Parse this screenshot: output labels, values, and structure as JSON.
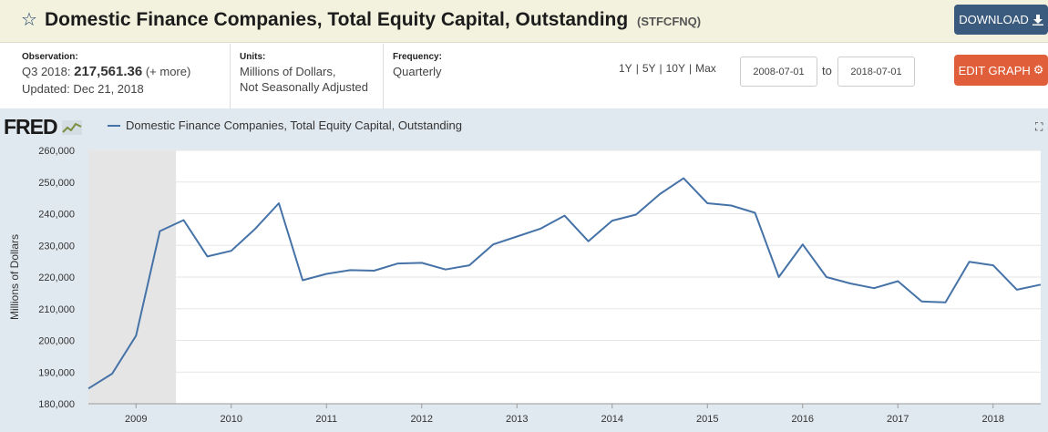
{
  "header": {
    "star_icon": "star-icon",
    "title": "Domestic Finance Companies, Total Equity Capital, Outstanding",
    "series_id": "(STFCFNQ)",
    "download_label": "DOWNLOAD",
    "download_icon": "download-icon"
  },
  "observation": {
    "label": "Observation:",
    "period": "Q3 2018:",
    "value": "217,561.36",
    "more": "(+ more)",
    "updated": "Updated: Dec 21, 2018"
  },
  "units": {
    "label": "Units:",
    "line1": "Millions of Dollars,",
    "line2": "Not Seasonally Adjusted"
  },
  "frequency": {
    "label": "Frequency:",
    "value": "Quarterly"
  },
  "range": {
    "options": [
      "1Y",
      "5Y",
      "10Y",
      "Max"
    ],
    "start": "2008-07-01",
    "to_label": "to",
    "end": "2018-07-01",
    "edit_label": "EDIT GRAPH"
  },
  "colors": {
    "series": "#4572a7",
    "recession": "#e5e5e5",
    "panel": "#e1e9f0",
    "grid": "#e6e6e6",
    "download": "#3a5a7e",
    "edit": "#e15e3a"
  },
  "chart_data": {
    "type": "line",
    "logo": "FRED",
    "legend": "Domestic Finance Companies, Total Equity Capital, Outstanding",
    "xlabel": "",
    "ylabel": "Millions of Dollars",
    "ylim": [
      180000,
      260000
    ],
    "xlim": [
      2008.5,
      2018.5
    ],
    "yticks": [
      180000,
      190000,
      200000,
      210000,
      220000,
      230000,
      240000,
      250000,
      260000
    ],
    "ytick_labels": [
      "180,000",
      "190,000",
      "200,000",
      "210,000",
      "220,000",
      "230,000",
      "240,000",
      "250,000",
      "260,000"
    ],
    "xticks": [
      2009,
      2010,
      2011,
      2012,
      2013,
      2014,
      2015,
      2016,
      2017,
      2018
    ],
    "xtick_labels": [
      "2009",
      "2010",
      "2011",
      "2012",
      "2013",
      "2014",
      "2015",
      "2016",
      "2017",
      "2018"
    ],
    "recession": [
      2008.5,
      2009.42
    ],
    "series": [
      {
        "name": "Domestic Finance Companies, Total Equity Capital, Outstanding",
        "x": [
          2008.5,
          2008.75,
          2009.0,
          2009.25,
          2009.5,
          2009.75,
          2010.0,
          2010.25,
          2010.5,
          2010.75,
          2011.0,
          2011.25,
          2011.5,
          2011.75,
          2012.0,
          2012.25,
          2012.5,
          2012.75,
          2013.0,
          2013.25,
          2013.5,
          2013.75,
          2014.0,
          2014.25,
          2014.5,
          2014.75,
          2015.0,
          2015.25,
          2015.5,
          2015.75,
          2016.0,
          2016.25,
          2016.5,
          2016.75,
          2017.0,
          2017.25,
          2017.5,
          2017.75,
          2018.0,
          2018.25,
          2018.5
        ],
        "values": [
          184800,
          189500,
          201500,
          234500,
          238000,
          226500,
          228300,
          235200,
          243300,
          219000,
          221000,
          222200,
          222000,
          224300,
          224500,
          222400,
          223700,
          230300,
          232800,
          235300,
          239400,
          231300,
          237800,
          239700,
          246200,
          251200,
          243300,
          242600,
          240300,
          220000,
          230300,
          220000,
          218000,
          216500,
          218700,
          212300,
          212000,
          224800,
          223700,
          216000,
          217600
        ]
      }
    ]
  }
}
